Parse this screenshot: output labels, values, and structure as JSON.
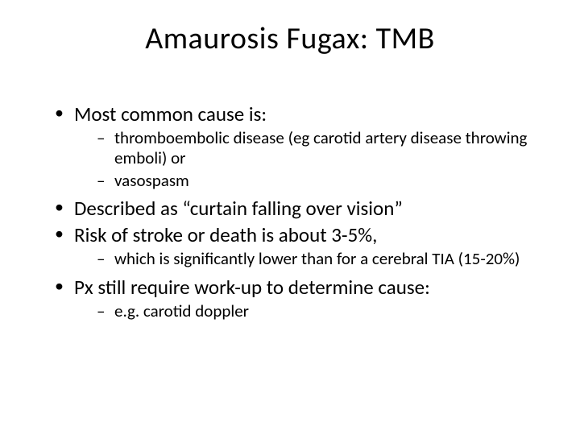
{
  "slide": {
    "title": "Amaurosis Fugax: TMB",
    "background_color": "#ffffff",
    "text_color": "#000000",
    "title_fontsize": 38,
    "body_fontsize": 25,
    "sub_fontsize": 21,
    "bullets": [
      {
        "text": "Most common cause is:",
        "children": [
          {
            "text": "thromboembolic disease (eg carotid artery disease throwing emboli) or"
          },
          {
            "text": " vasospasm"
          }
        ]
      },
      {
        "text": "Described as “curtain falling over vision”",
        "children": []
      },
      {
        "text": "Risk of stroke or death is about 3-5%,",
        "children": [
          {
            "text": " which is significantly lower than for a cerebral TIA (15-20%)"
          }
        ]
      },
      {
        "text": "Px still require work-up to determine cause:",
        "children": [
          {
            "text": " e.g. carotid doppler"
          }
        ]
      }
    ]
  }
}
